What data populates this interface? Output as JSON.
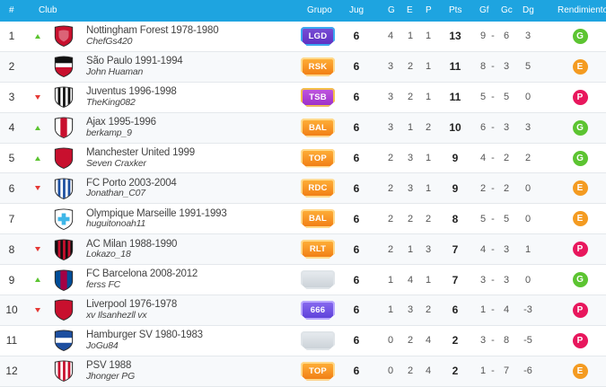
{
  "header": {
    "num": "#",
    "club": "Club",
    "grupo": "Grupo",
    "jug": "Jug",
    "g": "G",
    "e": "E",
    "p": "P",
    "pts": "Pts",
    "gf": "Gf",
    "gc": "Gc",
    "dg": "Dg",
    "rendimiento": "Rendimiento"
  },
  "rows": [
    {
      "pos": "1",
      "trend": "up",
      "crest": {
        "primary": "#c8102e",
        "secondary": "#ffffff",
        "style": "plain"
      },
      "club": "Nottingham Forest 1978-1980",
      "user": "ChefGs420",
      "grupo": "LGD",
      "grupo_style": "lgd",
      "jug": "6",
      "g": "4",
      "e": "1",
      "p": "1",
      "pts": "13",
      "gf": "9",
      "dash": "-",
      "gc": "6",
      "dg": "3",
      "rend": "G"
    },
    {
      "pos": "2",
      "trend": "none",
      "crest": {
        "primary": "#c8102e",
        "secondary": "#111111",
        "style": "split"
      },
      "club": "São Paulo 1991-1994",
      "user": "John Huaman",
      "grupo": "RSK",
      "grupo_style": "orange",
      "jug": "6",
      "g": "3",
      "e": "2",
      "p": "1",
      "pts": "11",
      "gf": "8",
      "dash": "-",
      "gc": "3",
      "dg": "5",
      "rend": "E"
    },
    {
      "pos": "3",
      "trend": "down",
      "crest": {
        "primary": "#111111",
        "secondary": "#ffffff",
        "style": "stripes"
      },
      "club": "Juventus 1996-1998",
      "user": "TheKing082",
      "grupo": "TSB",
      "grupo_style": "purple",
      "jug": "6",
      "g": "3",
      "e": "2",
      "p": "1",
      "pts": "11",
      "gf": "5",
      "dash": "-",
      "gc": "5",
      "dg": "0",
      "rend": "P"
    },
    {
      "pos": "4",
      "trend": "up",
      "crest": {
        "primary": "#c8102e",
        "secondary": "#ffffff",
        "style": "center"
      },
      "club": "Ajax 1995-1996",
      "user": "berkamp_9",
      "grupo": "BAL",
      "grupo_style": "orange",
      "jug": "6",
      "g": "3",
      "e": "1",
      "p": "2",
      "pts": "10",
      "gf": "6",
      "dash": "-",
      "gc": "3",
      "dg": "3",
      "rend": "G"
    },
    {
      "pos": "5",
      "trend": "up",
      "crest": {
        "primary": "#c8102e",
        "secondary": "#c8102e",
        "style": "plain"
      },
      "club": "Manchester United 1999",
      "user": "Seven Craxker",
      "grupo": "TOP",
      "grupo_style": "orange",
      "jug": "6",
      "g": "2",
      "e": "3",
      "p": "1",
      "pts": "9",
      "gf": "4",
      "dash": "-",
      "gc": "2",
      "dg": "2",
      "rend": "G"
    },
    {
      "pos": "6",
      "trend": "down",
      "crest": {
        "primary": "#1d4fa0",
        "secondary": "#ffffff",
        "style": "stripes"
      },
      "club": "FC Porto 2003-2004",
      "user": "Jonathan_C07",
      "grupo": "RDC",
      "grupo_style": "orange",
      "jug": "6",
      "g": "2",
      "e": "3",
      "p": "1",
      "pts": "9",
      "gf": "2",
      "dash": "-",
      "gc": "2",
      "dg": "0",
      "rend": "E"
    },
    {
      "pos": "7",
      "trend": "none",
      "crest": {
        "primary": "#ffffff",
        "secondary": "#3fb7e8",
        "style": "cross"
      },
      "club": "Olympique Marseille 1991-1993",
      "user": "huguitonoah11",
      "grupo": "BAL",
      "grupo_style": "orange",
      "jug": "6",
      "g": "2",
      "e": "2",
      "p": "2",
      "pts": "8",
      "gf": "5",
      "dash": "-",
      "gc": "5",
      "dg": "0",
      "rend": "E"
    },
    {
      "pos": "8",
      "trend": "down",
      "crest": {
        "primary": "#c8102e",
        "secondary": "#111111",
        "style": "stripes"
      },
      "club": "AC Milan 1988-1990",
      "user": "Lokazo_18",
      "grupo": "RLT",
      "grupo_style": "orange",
      "jug": "6",
      "g": "2",
      "e": "1",
      "p": "3",
      "pts": "7",
      "gf": "4",
      "dash": "-",
      "gc": "3",
      "dg": "1",
      "rend": "P"
    },
    {
      "pos": "9",
      "trend": "up",
      "crest": {
        "primary": "#a50044",
        "secondary": "#004d98",
        "style": "center"
      },
      "club": "FC Barcelona 2008-2012",
      "user": "ferss FC",
      "grupo": "",
      "grupo_style": "empty",
      "jug": "6",
      "g": "1",
      "e": "4",
      "p": "1",
      "pts": "7",
      "gf": "3",
      "dash": "-",
      "gc": "3",
      "dg": "0",
      "rend": "G"
    },
    {
      "pos": "10",
      "trend": "down",
      "crest": {
        "primary": "#c8102e",
        "secondary": "#c8102e",
        "style": "plain"
      },
      "club": "Liverpool 1976-1978",
      "user": "xv Ilsanhezll vx",
      "grupo": "666",
      "grupo_style": "blue",
      "jug": "6",
      "g": "1",
      "e": "3",
      "p": "2",
      "pts": "6",
      "gf": "1",
      "dash": "-",
      "gc": "4",
      "dg": "-3",
      "rend": "P"
    },
    {
      "pos": "11",
      "trend": "none",
      "crest": {
        "primary": "#1d4fa0",
        "secondary": "#ffffff",
        "style": "band"
      },
      "club": "Hamburger SV 1980-1983",
      "user": "JoGu84",
      "grupo": "",
      "grupo_style": "empty",
      "jug": "6",
      "g": "0",
      "e": "2",
      "p": "4",
      "pts": "2",
      "gf": "3",
      "dash": "-",
      "gc": "8",
      "dg": "-5",
      "rend": "P"
    },
    {
      "pos": "12",
      "trend": "none",
      "crest": {
        "primary": "#c8102e",
        "secondary": "#ffffff",
        "style": "stripes"
      },
      "club": "PSV 1988",
      "user": "Jhonger PG",
      "grupo": "TOP",
      "grupo_style": "orange",
      "jug": "6",
      "g": "0",
      "e": "2",
      "p": "4",
      "pts": "2",
      "gf": "1",
      "dash": "-",
      "gc": "7",
      "dg": "-6",
      "rend": "E"
    }
  ],
  "colors": {
    "header_bg": "#1ea4e0",
    "trend_up": "#5cc431",
    "trend_down": "#e53935",
    "rend_g": "#5cc431",
    "rend_e": "#f49b21",
    "rend_p": "#e8175d"
  }
}
